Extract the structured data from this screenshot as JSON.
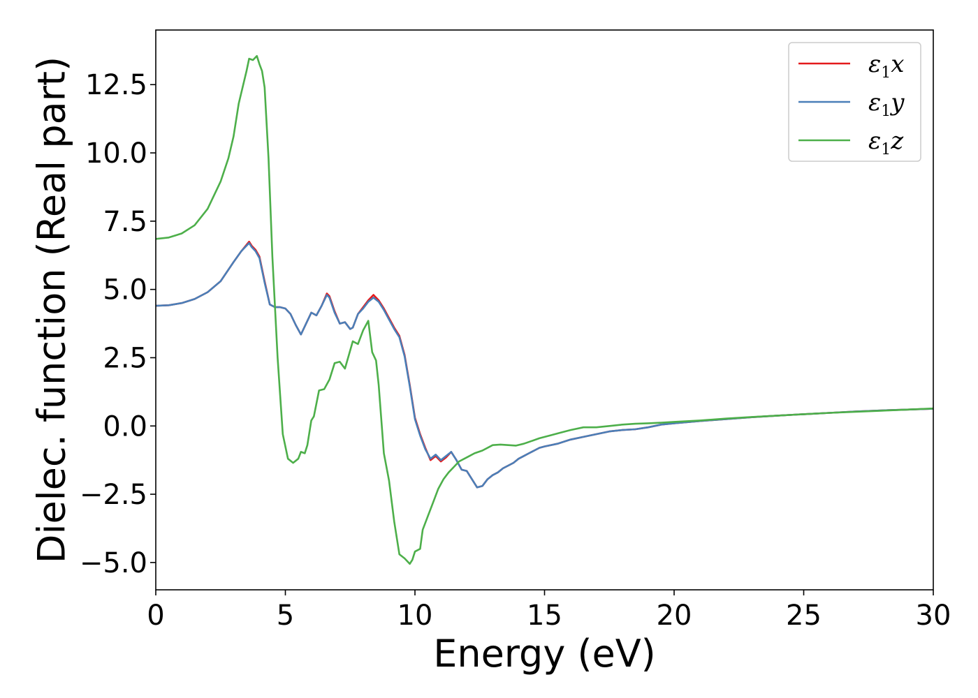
{
  "chart_data": {
    "type": "line",
    "title": "",
    "xlabel": "Energy (eV)",
    "ylabel": "Dielec. function (Real part)",
    "xlim": [
      0,
      30
    ],
    "ylim": [
      -6.0,
      14.5
    ],
    "xticks": [
      0,
      5,
      10,
      15,
      20,
      25,
      30
    ],
    "xtick_labels": [
      "0",
      "5",
      "10",
      "15",
      "20",
      "25",
      "30"
    ],
    "yticks": [
      -5.0,
      -2.5,
      0.0,
      2.5,
      5.0,
      7.5,
      10.0,
      12.5
    ],
    "ytick_labels": [
      "−5.0",
      "−2.5",
      "0.0",
      "2.5",
      "5.0",
      "7.5",
      "10.0",
      "12.5"
    ],
    "grid": false,
    "legend": {
      "placement": "top-right"
    },
    "series": [
      {
        "name": "ε1x",
        "label_main": "ε",
        "label_sub": "1",
        "label_tail": "x",
        "color": "#e41a1c",
        "x": [
          0,
          0.5,
          1.0,
          1.5,
          2.0,
          2.5,
          3.0,
          3.3,
          3.6,
          3.7,
          3.85,
          4.0,
          4.2,
          4.4,
          4.6,
          4.8,
          5.0,
          5.2,
          5.4,
          5.6,
          5.8,
          6.0,
          6.2,
          6.4,
          6.6,
          6.7,
          6.9,
          7.1,
          7.3,
          7.5,
          7.6,
          7.8,
          8.0,
          8.2,
          8.4,
          8.6,
          8.8,
          9.0,
          9.2,
          9.4,
          9.6,
          9.8,
          10.0,
          10.2,
          10.4,
          10.6,
          10.8,
          11.0,
          11.2,
          11.4,
          11.6,
          11.8,
          12.0,
          12.2,
          12.4,
          12.6,
          12.8,
          13.0,
          13.2,
          13.4,
          13.6,
          13.8,
          14.0,
          14.2,
          14.4,
          14.6,
          14.8,
          15.0,
          15.5,
          16.0,
          16.5,
          17.0,
          17.5,
          18.0,
          18.5,
          19.0,
          19.5,
          20.0,
          21.0,
          22.0,
          23.0,
          24.0,
          25.0,
          26.0,
          27.0,
          28.0,
          29.0,
          30.0
        ],
        "y": [
          4.4,
          4.42,
          4.5,
          4.65,
          4.9,
          5.3,
          6.0,
          6.4,
          6.75,
          6.6,
          6.45,
          6.2,
          5.3,
          4.45,
          4.35,
          4.35,
          4.3,
          4.1,
          3.7,
          3.35,
          3.75,
          4.15,
          4.05,
          4.4,
          4.85,
          4.75,
          4.2,
          3.75,
          3.8,
          3.55,
          3.6,
          4.1,
          4.35,
          4.6,
          4.8,
          4.6,
          4.3,
          3.95,
          3.6,
          3.3,
          2.6,
          1.5,
          0.3,
          -0.3,
          -0.8,
          -1.25,
          -1.1,
          -1.3,
          -1.15,
          -0.95,
          -1.25,
          -1.6,
          -1.65,
          -1.95,
          -2.25,
          -2.2,
          -1.95,
          -1.8,
          -1.7,
          -1.55,
          -1.45,
          -1.35,
          -1.2,
          -1.1,
          -1.0,
          -0.9,
          -0.8,
          -0.75,
          -0.65,
          -0.5,
          -0.4,
          -0.3,
          -0.2,
          -0.15,
          -0.12,
          -0.05,
          0.05,
          0.1,
          0.18,
          0.25,
          0.32,
          0.38,
          0.43,
          0.48,
          0.53,
          0.57,
          0.6,
          0.63
        ]
      },
      {
        "name": "ε1y",
        "label_main": "ε",
        "label_sub": "1",
        "label_tail": "y",
        "color": "#4a7fb8",
        "x": [
          0,
          0.5,
          1.0,
          1.5,
          2.0,
          2.5,
          3.0,
          3.3,
          3.6,
          3.7,
          3.85,
          4.0,
          4.2,
          4.4,
          4.6,
          4.8,
          5.0,
          5.2,
          5.4,
          5.6,
          5.8,
          6.0,
          6.2,
          6.4,
          6.6,
          6.7,
          6.9,
          7.1,
          7.3,
          7.5,
          7.6,
          7.8,
          8.0,
          8.2,
          8.4,
          8.6,
          8.8,
          9.0,
          9.2,
          9.4,
          9.6,
          9.8,
          10.0,
          10.2,
          10.4,
          10.6,
          10.8,
          11.0,
          11.2,
          11.4,
          11.6,
          11.8,
          12.0,
          12.2,
          12.4,
          12.6,
          12.8,
          13.0,
          13.2,
          13.4,
          13.6,
          13.8,
          14.0,
          14.2,
          14.4,
          14.6,
          14.8,
          15.0,
          15.5,
          16.0,
          16.5,
          17.0,
          17.5,
          18.0,
          18.5,
          19.0,
          19.5,
          20.0,
          21.0,
          22.0,
          23.0,
          24.0,
          25.0,
          26.0,
          27.0,
          28.0,
          29.0,
          30.0
        ],
        "y": [
          4.4,
          4.42,
          4.5,
          4.65,
          4.9,
          5.3,
          6.0,
          6.4,
          6.7,
          6.55,
          6.4,
          6.15,
          5.25,
          4.45,
          4.35,
          4.35,
          4.3,
          4.1,
          3.7,
          3.35,
          3.75,
          4.15,
          4.05,
          4.4,
          4.8,
          4.7,
          4.15,
          3.75,
          3.8,
          3.55,
          3.6,
          4.1,
          4.3,
          4.55,
          4.7,
          4.55,
          4.25,
          3.9,
          3.55,
          3.25,
          2.55,
          1.45,
          0.25,
          -0.35,
          -0.85,
          -1.2,
          -1.05,
          -1.25,
          -1.1,
          -0.95,
          -1.25,
          -1.6,
          -1.65,
          -1.95,
          -2.25,
          -2.2,
          -1.95,
          -1.8,
          -1.7,
          -1.55,
          -1.45,
          -1.35,
          -1.2,
          -1.1,
          -1.0,
          -0.9,
          -0.8,
          -0.75,
          -0.65,
          -0.5,
          -0.4,
          -0.3,
          -0.2,
          -0.15,
          -0.12,
          -0.05,
          0.05,
          0.1,
          0.18,
          0.25,
          0.32,
          0.38,
          0.43,
          0.48,
          0.53,
          0.57,
          0.6,
          0.63
        ]
      },
      {
        "name": "ε1z",
        "label_main": "ε",
        "label_sub": "1",
        "label_tail": "z",
        "color": "#4daf4a",
        "x": [
          0,
          0.5,
          1.0,
          1.5,
          2.0,
          2.5,
          2.8,
          3.0,
          3.2,
          3.3,
          3.5,
          3.6,
          3.75,
          3.9,
          4.0,
          4.1,
          4.2,
          4.35,
          4.5,
          4.7,
          4.9,
          5.1,
          5.3,
          5.5,
          5.6,
          5.75,
          5.85,
          6.0,
          6.1,
          6.3,
          6.5,
          6.7,
          6.9,
          7.1,
          7.3,
          7.45,
          7.6,
          7.8,
          8.0,
          8.2,
          8.35,
          8.5,
          8.6,
          8.8,
          9.0,
          9.2,
          9.4,
          9.6,
          9.8,
          9.9,
          10.0,
          10.2,
          10.3,
          10.5,
          10.7,
          10.9,
          11.1,
          11.3,
          11.5,
          11.7,
          12.0,
          12.3,
          12.6,
          13.0,
          13.3,
          13.6,
          13.9,
          14.2,
          14.5,
          14.8,
          15.2,
          15.6,
          16.0,
          16.5,
          17.0,
          17.5,
          18.0,
          18.5,
          19.0,
          19.5,
          20.0,
          21.0,
          22.0,
          23.0,
          24.0,
          25.0,
          26.0,
          27.0,
          28.0,
          29.0,
          30.0
        ],
        "y": [
          6.85,
          6.9,
          7.05,
          7.35,
          7.95,
          8.95,
          9.8,
          10.6,
          11.8,
          12.2,
          13.0,
          13.45,
          13.4,
          13.55,
          13.25,
          13.0,
          12.4,
          9.8,
          6.2,
          2.5,
          -0.3,
          -1.2,
          -1.35,
          -1.2,
          -0.95,
          -1.0,
          -0.7,
          0.2,
          0.35,
          1.3,
          1.35,
          1.7,
          2.3,
          2.35,
          2.1,
          2.6,
          3.1,
          3.0,
          3.5,
          3.85,
          2.7,
          2.4,
          1.5,
          -1.0,
          -2.0,
          -3.5,
          -4.7,
          -4.85,
          -5.05,
          -4.9,
          -4.6,
          -4.5,
          -3.8,
          -3.3,
          -2.8,
          -2.3,
          -1.95,
          -1.7,
          -1.5,
          -1.3,
          -1.15,
          -1.0,
          -0.9,
          -0.7,
          -0.68,
          -0.7,
          -0.72,
          -0.65,
          -0.55,
          -0.45,
          -0.35,
          -0.25,
          -0.15,
          -0.05,
          -0.05,
          0.0,
          0.05,
          0.08,
          0.1,
          0.12,
          0.15,
          0.2,
          0.27,
          0.33,
          0.38,
          0.43,
          0.48,
          0.52,
          0.56,
          0.6,
          0.64
        ]
      }
    ]
  }
}
